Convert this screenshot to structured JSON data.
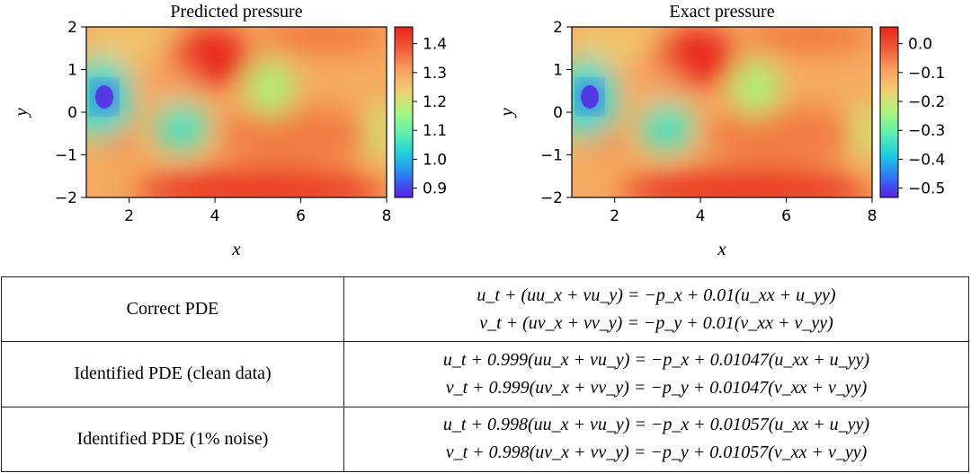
{
  "figure": {
    "panels": [
      {
        "title": "Predicted pressure",
        "xlabel": "x",
        "ylabel": "y",
        "x_ticks": [
          "2",
          "4",
          "6",
          "8"
        ],
        "y_ticks": [
          "2",
          "1",
          "0",
          "−1",
          "−2"
        ],
        "colorbar_ticks": [
          "1.4",
          "1.3",
          "1.2",
          "1.1",
          "1.0",
          "0.9"
        ]
      },
      {
        "title": "Exact pressure",
        "xlabel": "x",
        "ylabel": "y",
        "x_ticks": [
          "2",
          "4",
          "6",
          "8"
        ],
        "y_ticks": [
          "2",
          "1",
          "0",
          "−1",
          "−2"
        ],
        "colorbar_ticks": [
          "0.0",
          "−0.1",
          "−0.2",
          "−0.3",
          "−0.4",
          "−0.5"
        ]
      }
    ],
    "colormap": [
      "#5a1ee6",
      "#2d7af5",
      "#1ecde0",
      "#5ef0b0",
      "#a8f57c",
      "#f0d070",
      "#f8a060",
      "#f05a38",
      "#e6241c"
    ]
  },
  "chart_data": [
    {
      "type": "heatmap",
      "title": "Predicted pressure",
      "xlabel": "x",
      "ylabel": "y",
      "xlim": [
        1,
        8
      ],
      "ylim": [
        -2,
        2
      ],
      "colorbar_range": [
        0.87,
        1.46
      ],
      "colorbar_ticks": [
        0.9,
        1.0,
        1.1,
        1.2,
        1.3,
        1.4
      ]
    },
    {
      "type": "heatmap",
      "title": "Exact pressure",
      "xlabel": "x",
      "ylabel": "y",
      "xlim": [
        1,
        8
      ],
      "ylim": [
        -2,
        2
      ],
      "colorbar_range": [
        -0.53,
        0.06
      ],
      "colorbar_ticks": [
        -0.5,
        -0.4,
        -0.3,
        -0.2,
        -0.1,
        0.0
      ]
    }
  ],
  "table": {
    "rows": [
      {
        "label": "Correct PDE",
        "eq1": "u_t + (uu_x + vu_y) = −p_x + 0.01(u_xx + u_yy)",
        "eq2": "v_t + (uv_x + vv_y) = −p_y + 0.01(v_xx + v_yy)"
      },
      {
        "label": "Identified PDE (clean data)",
        "eq1": "u_t + 0.999(uu_x + vu_y) = −p_x + 0.01047(u_xx + u_yy)",
        "eq2": "v_t + 0.999(uv_x + vv_y) = −p_y + 0.01047(v_xx + v_yy)"
      },
      {
        "label": "Identified PDE (1% noise)",
        "eq1": "u_t + 0.998(uu_x + vu_y) = −p_x + 0.01057(u_xx + u_yy)",
        "eq2": "v_t + 0.998(uv_x + vv_y) = −p_y + 0.01057(v_xx + v_yy)"
      }
    ]
  }
}
